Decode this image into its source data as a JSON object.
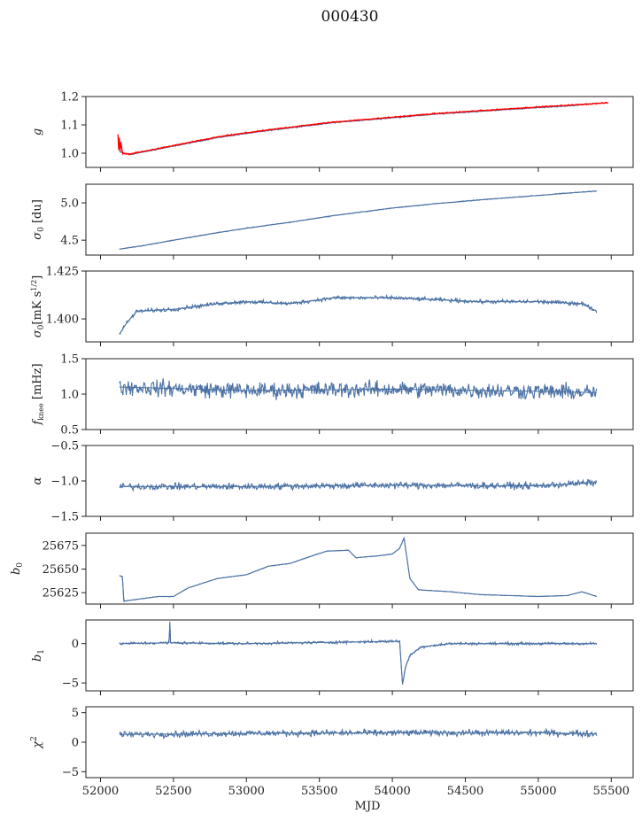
{
  "figure_title": "000430",
  "chart_data": [
    {
      "type": "line",
      "ylabel": "g",
      "ylim": [
        0.95,
        1.2
      ],
      "yticks": [
        1.0,
        1.1,
        1.2
      ],
      "ytick_labels": [
        "1.0",
        "1.1",
        "1.2"
      ],
      "noise": 0.003,
      "series": [
        {
          "color": "#4c72a4",
          "points": [
            [
              52130,
              1.005
            ],
            [
              52200,
              0.995
            ],
            [
              52300,
              1.005
            ],
            [
              52500,
              1.025
            ],
            [
              52800,
              1.055
            ],
            [
              53000,
              1.07
            ],
            [
              53300,
              1.09
            ],
            [
              53600,
              1.108
            ],
            [
              54000,
              1.125
            ],
            [
              54300,
              1.138
            ],
            [
              54600,
              1.148
            ],
            [
              54900,
              1.158
            ],
            [
              55200,
              1.167
            ],
            [
              55400,
              1.176
            ]
          ]
        },
        {
          "color": "#ff0000",
          "points": [
            [
              52120,
              1.065
            ],
            [
              52125,
              1.01
            ],
            [
              52130,
              1.055
            ],
            [
              52135,
              1.005
            ],
            [
              52140,
              1.04
            ],
            [
              52150,
              1.0
            ],
            [
              52200,
              0.997
            ],
            [
              52300,
              1.007
            ],
            [
              52500,
              1.027
            ],
            [
              52800,
              1.057
            ],
            [
              53000,
              1.072
            ],
            [
              53300,
              1.092
            ],
            [
              53600,
              1.11
            ],
            [
              54000,
              1.127
            ],
            [
              54300,
              1.14
            ],
            [
              54600,
              1.15
            ],
            [
              54900,
              1.16
            ],
            [
              55200,
              1.169
            ],
            [
              55480,
              1.178
            ]
          ]
        }
      ]
    },
    {
      "type": "line",
      "ylabel": "σ0 [du]",
      "ylim": [
        4.3,
        5.25
      ],
      "yticks": [
        4.5,
        5.0
      ],
      "ytick_labels": [
        "4.5",
        "5.0"
      ],
      "noise": 0.008,
      "series": [
        {
          "color": "#4c72a4",
          "points": [
            [
              52130,
              4.38
            ],
            [
              52300,
              4.43
            ],
            [
              52500,
              4.5
            ],
            [
              52800,
              4.6
            ],
            [
              53000,
              4.66
            ],
            [
              53300,
              4.74
            ],
            [
              53600,
              4.83
            ],
            [
              54000,
              4.93
            ],
            [
              54300,
              4.99
            ],
            [
              54600,
              5.04
            ],
            [
              55000,
              5.1
            ],
            [
              55400,
              5.16
            ]
          ]
        }
      ]
    },
    {
      "type": "line",
      "ylabel": "σ0[mK s^1/2]",
      "ylim": [
        1.388,
        1.425
      ],
      "yticks": [
        1.4,
        1.425
      ],
      "ytick_labels": [
        "1.400",
        "1.425"
      ],
      "noise": 0.0015,
      "series": [
        {
          "color": "#4c72a4",
          "points": [
            [
              52130,
              1.392
            ],
            [
              52180,
              1.398
            ],
            [
              52250,
              1.404
            ],
            [
              52500,
              1.405
            ],
            [
              52800,
              1.408
            ],
            [
              53000,
              1.409
            ],
            [
              53300,
              1.408
            ],
            [
              53600,
              1.411
            ],
            [
              54000,
              1.411
            ],
            [
              54300,
              1.41
            ],
            [
              54600,
              1.409
            ],
            [
              55000,
              1.409
            ],
            [
              55300,
              1.408
            ],
            [
              55400,
              1.404
            ]
          ]
        }
      ]
    },
    {
      "type": "line",
      "ylabel": "fknee [mHz]",
      "ylim": [
        0.5,
        1.5
      ],
      "yticks": [
        0.5,
        1.0,
        1.5
      ],
      "ytick_labels": [
        "0.5",
        "1.0",
        "1.5"
      ],
      "noise": 0.17,
      "series": [
        {
          "color": "#4c72a4",
          "points": [
            [
              52130,
              1.1
            ],
            [
              53000,
              1.05
            ],
            [
              54000,
              1.07
            ],
            [
              55000,
              1.04
            ],
            [
              55400,
              1.02
            ]
          ]
        }
      ]
    },
    {
      "type": "line",
      "ylabel": "α",
      "ylim": [
        -1.5,
        -0.5
      ],
      "yticks": [
        -1.5,
        -1.0,
        -0.5
      ],
      "ytick_labels": [
        "−1.5",
        "−1.0",
        "−0.5"
      ],
      "noise": 0.07,
      "series": [
        {
          "color": "#4c72a4",
          "points": [
            [
              52130,
              -1.08
            ],
            [
              53000,
              -1.08
            ],
            [
              54000,
              -1.06
            ],
            [
              55000,
              -1.07
            ],
            [
              55400,
              -1.02
            ]
          ]
        }
      ]
    },
    {
      "type": "line",
      "ylabel": "b0",
      "ylim": [
        25613,
        25688
      ],
      "yticks": [
        25625,
        25650,
        25675
      ],
      "ytick_labels": [
        "25625",
        "25650",
        "25675"
      ],
      "noise": 0.4,
      "series": [
        {
          "color": "#4c72a4",
          "points": [
            [
              52130,
              25643
            ],
            [
              52150,
              25642
            ],
            [
              52160,
              25616
            ],
            [
              52250,
              25618
            ],
            [
              52400,
              25621
            ],
            [
              52500,
              25621
            ],
            [
              52600,
              25630
            ],
            [
              52800,
              25640
            ],
            [
              53000,
              25644
            ],
            [
              53150,
              25653
            ],
            [
              53300,
              25656
            ],
            [
              53450,
              25664
            ],
            [
              53550,
              25669
            ],
            [
              53700,
              25670
            ],
            [
              53750,
              25662
            ],
            [
              53900,
              25664
            ],
            [
              54000,
              25666
            ],
            [
              54050,
              25672
            ],
            [
              54080,
              25683
            ],
            [
              54120,
              25640
            ],
            [
              54180,
              25628
            ],
            [
              54400,
              25626
            ],
            [
              54600,
              25623
            ],
            [
              54800,
              25622
            ],
            [
              55000,
              25621
            ],
            [
              55200,
              25622
            ],
            [
              55300,
              25626
            ],
            [
              55400,
              25621
            ]
          ]
        }
      ]
    },
    {
      "type": "line",
      "ylabel": "b1",
      "ylim": [
        -6,
        3
      ],
      "yticks": [
        -5,
        0
      ],
      "ytick_labels": [
        "−5",
        "0"
      ],
      "noise": 0.25,
      "series": [
        {
          "color": "#4c72a4",
          "points": [
            [
              52130,
              0.0
            ],
            [
              52470,
              0.1
            ],
            [
              52475,
              2.8
            ],
            [
              52480,
              0.1
            ],
            [
              53000,
              0.0
            ],
            [
              54050,
              0.3
            ],
            [
              54070,
              -5.2
            ],
            [
              54090,
              -3.0
            ],
            [
              54120,
              -1.5
            ],
            [
              54200,
              -0.4
            ],
            [
              54400,
              0.0
            ],
            [
              55400,
              0.0
            ]
          ]
        }
      ]
    },
    {
      "type": "line",
      "ylabel": "χ2",
      "xlabel": "MJD",
      "ylim": [
        -6,
        6
      ],
      "yticks": [
        -5,
        0,
        5
      ],
      "ytick_labels": [
        "−5",
        "0",
        "5"
      ],
      "noise": 0.8,
      "series": [
        {
          "color": "#4c72a4",
          "points": [
            [
              52130,
              1.3
            ],
            [
              53000,
              1.5
            ],
            [
              54000,
              1.6
            ],
            [
              55000,
              1.6
            ],
            [
              55400,
              1.4
            ]
          ]
        }
      ]
    }
  ],
  "shared_x": {
    "xlim": [
      51900,
      55650
    ],
    "xticks": [
      52000,
      52500,
      53000,
      53500,
      54000,
      54500,
      55000,
      55500
    ],
    "xtick_labels": [
      "52000",
      "52500",
      "53000",
      "53500",
      "54000",
      "54500",
      "55000",
      "55500"
    ]
  }
}
